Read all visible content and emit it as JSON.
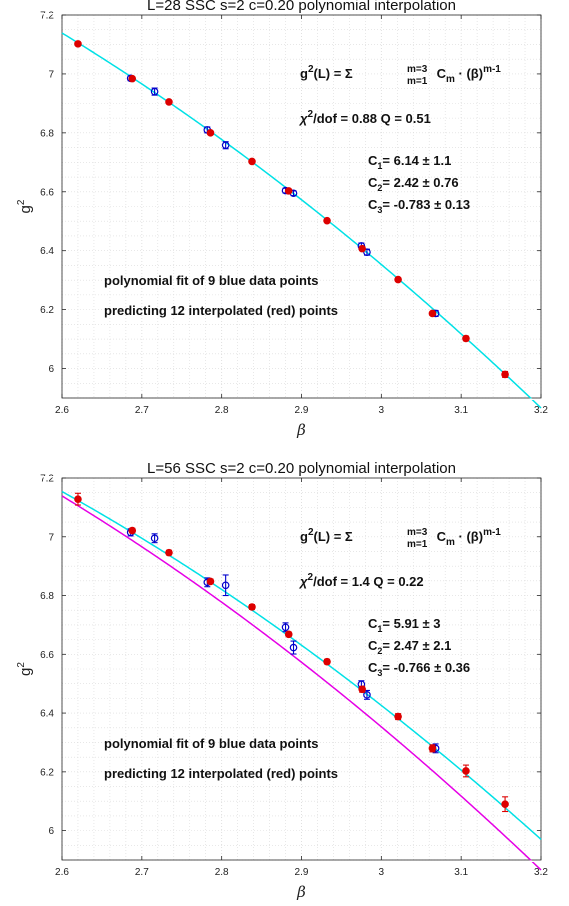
{
  "colors": {
    "fit": "#00e1e6",
    "prior_fit": "#e600e6",
    "blue_points": "#0000cc",
    "red_points": "#dd0000",
    "grid": "#d9d9d9"
  },
  "chart_data": [
    {
      "type": "scatter",
      "title": "L=28  SSC   s=2   c=0.20    polynomial interpolation",
      "xlabel": "β",
      "ylabel": "g",
      "ylabel_sup": "2",
      "xlim": [
        2.6,
        3.2
      ],
      "ylim": [
        5.9,
        7.2
      ],
      "xticks": [
        2.6,
        2.7,
        2.8,
        2.9,
        3.0,
        3.1,
        3.2
      ],
      "xtick_labels": [
        "2.6",
        "2.7",
        "2.8",
        "2.9",
        "3",
        "3.1",
        "3.2"
      ],
      "yticks": [
        6.0,
        6.2,
        6.4,
        6.6,
        6.8,
        7.0,
        7.2
      ],
      "ytick_labels": [
        "6",
        "6.2",
        "6.4",
        "6.6",
        "6.8",
        "7",
        "7.2"
      ],
      "grid": true,
      "formula": {
        "lhs": "g",
        "lhs_sup": "2",
        "lhs_arg": "(L) = Σ",
        "sum_sup": "m=3",
        "sum_sub": "m=1",
        "term": " C",
        "term_sub": "m",
        "term_rest": " · (β)",
        "term_sup": "m-1"
      },
      "chi": {
        "symbol": "χ",
        "sup": "2",
        "text": "/dof = 0.88    Q = 0.51"
      },
      "coefficients": [
        {
          "sym": "C",
          "sub": "1",
          "text": "=  6.14 ± 1.1"
        },
        {
          "sym": "C",
          "sub": "2",
          "text": "=  2.42 ± 0.76"
        },
        {
          "sym": "C",
          "sub": "3",
          "text": "=  -0.783 ± 0.13"
        }
      ],
      "notes": [
        "polynomial fit of 9 blue data points",
        "predicting 12 interpolated (red) points"
      ],
      "fits": [
        {
          "role": "fit",
          "coefficients": [
            6.14,
            2.42,
            -0.783
          ]
        }
      ],
      "series": [
        {
          "role": "blue",
          "x": [
            2.686,
            2.716,
            2.782,
            2.805,
            2.88,
            2.89,
            2.975,
            2.982,
            3.068
          ],
          "y": [
            6.985,
            6.94,
            6.81,
            6.758,
            6.604,
            6.595,
            6.416,
            6.395,
            6.187
          ],
          "err": [
            0.008,
            0.012,
            0.01,
            0.012,
            0.008,
            0.008,
            0.01,
            0.01,
            0.01
          ]
        },
        {
          "role": "red",
          "x": [
            2.62,
            2.688,
            2.734,
            2.786,
            2.838,
            2.884,
            2.932,
            2.976,
            3.021,
            3.064,
            3.106,
            3.155
          ],
          "y": [
            7.102,
            6.984,
            6.905,
            6.8,
            6.703,
            6.603,
            6.502,
            6.407,
            6.302,
            6.187,
            6.102,
            5.98
          ],
          "err": [
            0.006,
            0.005,
            0.005,
            0.005,
            0.005,
            0.005,
            0.005,
            0.006,
            0.006,
            0.006,
            0.008,
            0.01
          ]
        }
      ]
    },
    {
      "type": "scatter",
      "title": "L=56  SSC   s=2   c=0.20    polynomial interpolation",
      "xlabel": "β",
      "ylabel": "g",
      "ylabel_sup": "2",
      "xlim": [
        2.6,
        3.2
      ],
      "ylim": [
        5.9,
        7.2
      ],
      "xticks": [
        2.6,
        2.7,
        2.8,
        2.9,
        3.0,
        3.1,
        3.2
      ],
      "xtick_labels": [
        "2.6",
        "2.7",
        "2.8",
        "2.9",
        "3",
        "3.1",
        "3.2"
      ],
      "yticks": [
        6.0,
        6.2,
        6.4,
        6.6,
        6.8,
        7.0,
        7.2
      ],
      "ytick_labels": [
        "6",
        "6.2",
        "6.4",
        "6.6",
        "6.8",
        "7",
        "7.2"
      ],
      "grid": true,
      "formula": {
        "lhs": "g",
        "lhs_sup": "2",
        "lhs_arg": "(L) = Σ",
        "sum_sup": "m=3",
        "sum_sub": "m=1",
        "term": " C",
        "term_sub": "m",
        "term_rest": " · (β)",
        "term_sup": "m-1"
      },
      "chi": {
        "symbol": "χ",
        "sup": "2",
        "text": "/dof = 1.4    Q = 0.22"
      },
      "coefficients": [
        {
          "sym": "C",
          "sub": "1",
          "text": "=  5.91 ± 3"
        },
        {
          "sym": "C",
          "sub": "2",
          "text": "=  2.47 ± 2.1"
        },
        {
          "sym": "C",
          "sub": "3",
          "text": "=  -0.766 ± 0.36"
        }
      ],
      "notes": [
        "polynomial fit of 9 blue data points",
        "predicting 12 interpolated (red) points"
      ],
      "fits": [
        {
          "role": "fit",
          "coefficients": [
            5.91,
            2.47,
            -0.766
          ]
        },
        {
          "role": "prior_fit",
          "coefficients": [
            6.14,
            2.42,
            -0.783
          ]
        }
      ],
      "series": [
        {
          "role": "blue",
          "x": [
            2.686,
            2.716,
            2.782,
            2.805,
            2.88,
            2.89,
            2.975,
            2.982,
            3.068
          ],
          "y": [
            7.015,
            6.995,
            6.845,
            6.835,
            6.692,
            6.623,
            6.498,
            6.462,
            6.28
          ],
          "err": [
            0.012,
            0.015,
            0.015,
            0.035,
            0.015,
            0.022,
            0.012,
            0.015,
            0.015
          ]
        },
        {
          "role": "red",
          "x": [
            2.62,
            2.688,
            2.734,
            2.786,
            2.838,
            2.884,
            2.932,
            2.976,
            3.021,
            3.064,
            3.106,
            3.155
          ],
          "y": [
            7.128,
            7.021,
            6.946,
            6.848,
            6.761,
            6.668,
            6.575,
            6.481,
            6.388,
            6.28,
            6.203,
            6.09
          ],
          "err": [
            0.02,
            0.008,
            0.008,
            0.008,
            0.008,
            0.008,
            0.008,
            0.01,
            0.01,
            0.012,
            0.02,
            0.025
          ]
        }
      ]
    }
  ]
}
